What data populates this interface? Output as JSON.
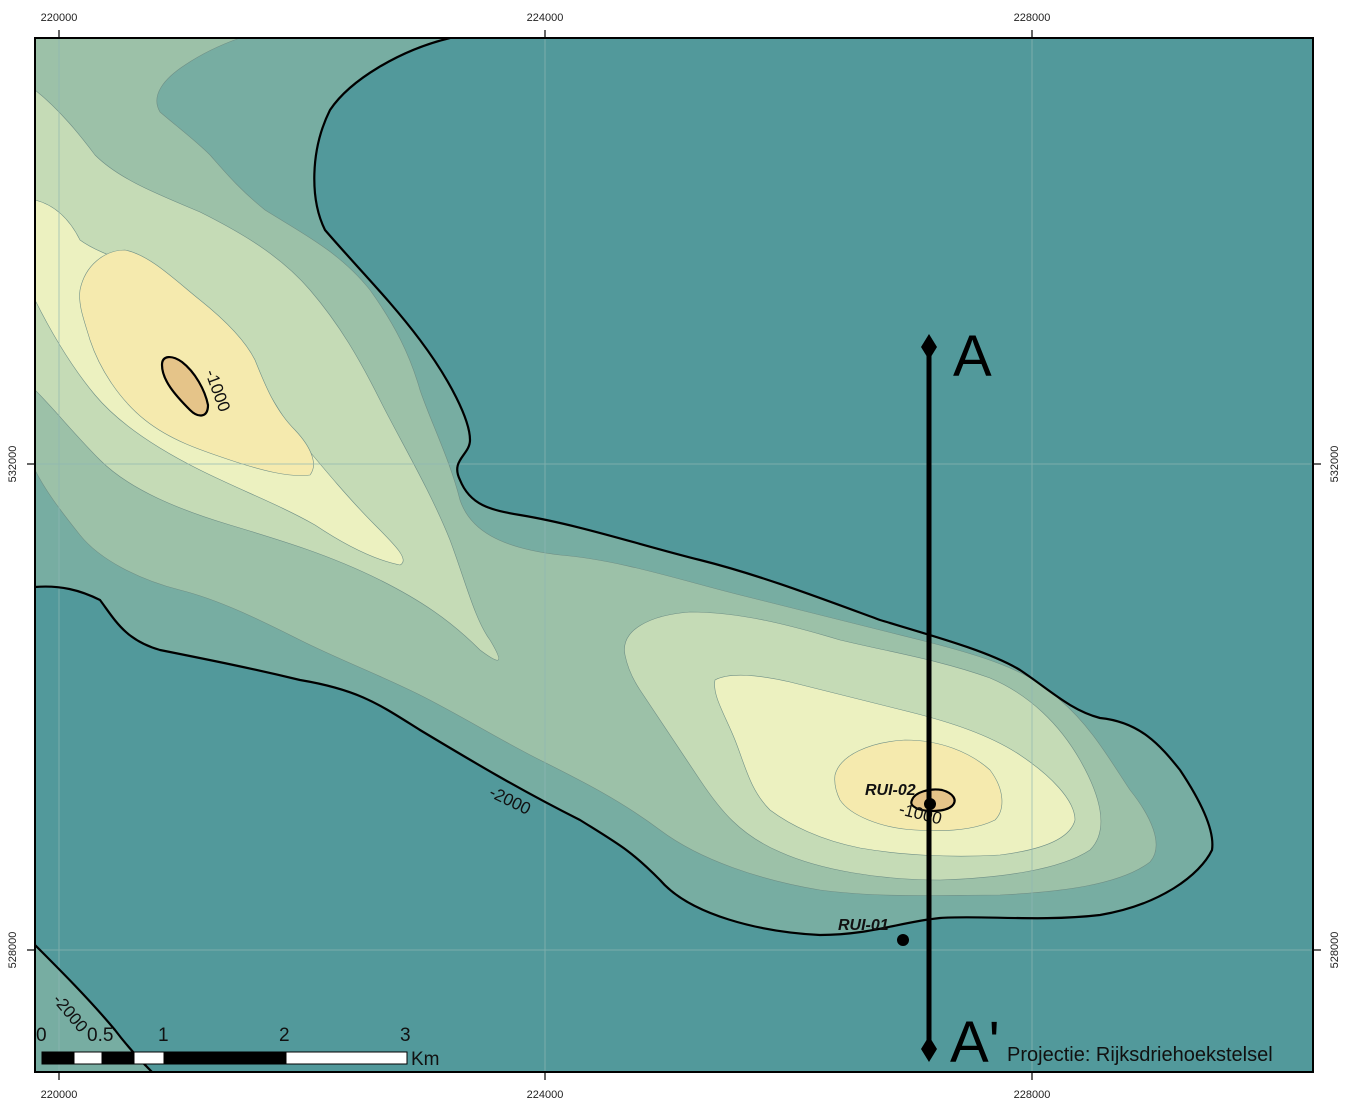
{
  "map": {
    "colors": {
      "deep": "#52999b",
      "band1": "#77ada2",
      "band2": "#9cc1a8",
      "band3": "#c5dbb6",
      "band4": "#ecf1c0",
      "band5": "#f5eaae",
      "peak": "#e5c489",
      "grid": "#8fb6b3",
      "contour": "#000000"
    },
    "grid": {
      "x_ticks": [
        "220000",
        "224000",
        "228000"
      ],
      "y_ticks": [
        "532000",
        "528000"
      ]
    },
    "contour_labels": {
      "minus_1000_a": "-1000",
      "minus_1000_b": "-1000",
      "minus_2000_a": "-2000",
      "minus_2000_b": "-2000"
    },
    "wells": [
      {
        "name": "RUI-02"
      },
      {
        "name": "RUI-01"
      }
    ],
    "cross_section": {
      "start_label": "A",
      "end_label": "A'"
    },
    "scale_bar": {
      "labels": [
        "0",
        "0.5",
        "1",
        "2",
        "3"
      ],
      "unit": "Km"
    },
    "projection": "Projectie: Rijksdriehoekstelsel"
  }
}
